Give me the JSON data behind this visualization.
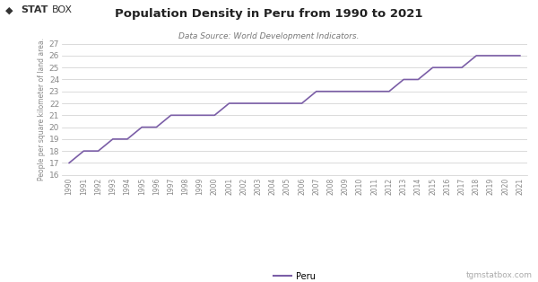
{
  "title": "Population Density in Peru from 1990 to 2021",
  "subtitle": "Data Source: World Development Indicators.",
  "ylabel": "People per square kilometer of land area.",
  "legend_label": "Peru",
  "watermark": "tgmstatbox.com",
  "line_color": "#7b5ea7",
  "background_color": "#ffffff",
  "grid_color": "#cccccc",
  "ylim": [
    16,
    27
  ],
  "yticks": [
    16,
    17,
    18,
    19,
    20,
    21,
    22,
    23,
    24,
    25,
    26,
    27
  ],
  "years": [
    1990,
    1991,
    1992,
    1993,
    1994,
    1995,
    1996,
    1997,
    1998,
    1999,
    2000,
    2001,
    2002,
    2003,
    2004,
    2005,
    2006,
    2007,
    2008,
    2009,
    2010,
    2011,
    2012,
    2013,
    2014,
    2015,
    2016,
    2017,
    2018,
    2019,
    2020,
    2021
  ],
  "values": [
    17.0,
    18.0,
    18.0,
    19.0,
    19.0,
    20.0,
    20.0,
    21.0,
    21.0,
    21.0,
    21.0,
    22.0,
    22.0,
    22.0,
    22.0,
    22.0,
    22.0,
    23.0,
    23.0,
    23.0,
    23.0,
    23.0,
    23.0,
    24.0,
    24.0,
    25.0,
    25.0,
    25.0,
    26.0,
    26.0,
    26.0,
    26.0
  ],
  "logo_diamond_color": "#333333",
  "logo_stat_color": "#333333",
  "logo_box_color": "#333333",
  "title_color": "#222222",
  "subtitle_color": "#777777",
  "tick_color": "#888888",
  "ylabel_color": "#888888",
  "watermark_color": "#aaaaaa"
}
